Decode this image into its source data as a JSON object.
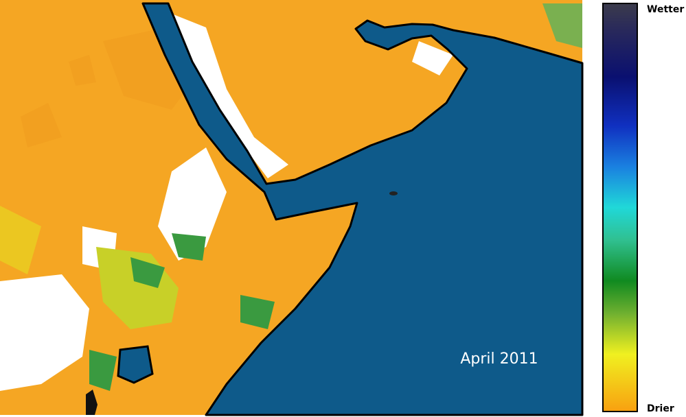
{
  "map": {
    "date_label": "April 2011"
  },
  "legend": {
    "top_label": "Wetter",
    "bottom_label": "Drier"
  }
}
